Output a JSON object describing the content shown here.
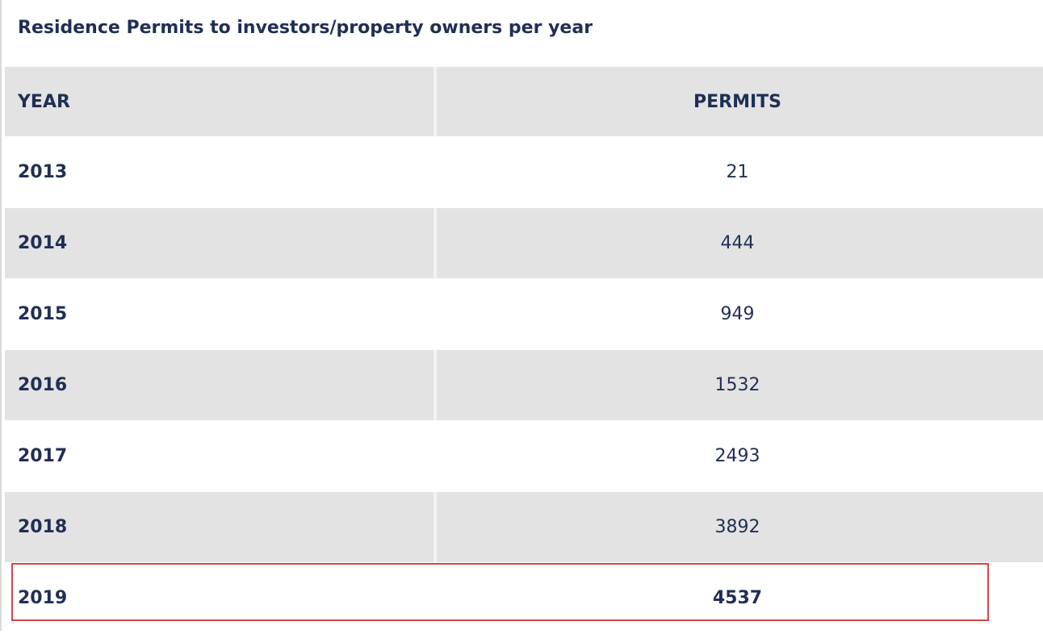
{
  "title": "Residence Permits to investors/property owners per year",
  "table": {
    "headers": {
      "year": "YEAR",
      "permits": "PERMITS"
    },
    "rows": [
      {
        "year": "2013",
        "permits": "21"
      },
      {
        "year": "2014",
        "permits": "444"
      },
      {
        "year": "2015",
        "permits": "949"
      },
      {
        "year": "2016",
        "permits": "1532"
      },
      {
        "year": "2017",
        "permits": "2493"
      },
      {
        "year": "2018",
        "permits": "3892"
      },
      {
        "year": "2019",
        "permits": "4537"
      }
    ]
  },
  "highlight": {
    "row_year": "2019",
    "border_color": "#d64545"
  },
  "colors": {
    "text": "#1f2f55",
    "row_shade": "#e3e3e3",
    "row_plain": "#ffffff"
  }
}
